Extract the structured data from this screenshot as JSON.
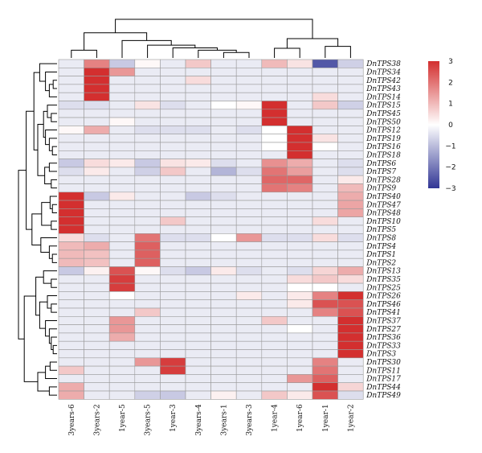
{
  "chart_data": {
    "type": "heatmap",
    "title": "",
    "xlabel": "",
    "ylabel": "",
    "columns": [
      "3years-6",
      "3years-2",
      "1year-5",
      "3years-5",
      "1year-3",
      "3years-4",
      "3years-1",
      "3years-3",
      "1year-4",
      "1year-6",
      "1year-1",
      "1year-2"
    ],
    "rows": [
      "DnTPS38",
      "DnTPS34",
      "DnTPS42",
      "DnTPS43",
      "DnTPS14",
      "DnTPS15",
      "DnTPS45",
      "DnTPS50",
      "DnTPS12",
      "DnTPS19",
      "DnTPS16",
      "DnTPS18",
      "DnTPS6",
      "DnTPS7",
      "DnTPS28",
      "DnTPS9",
      "DnTPS40",
      "DnTPS47",
      "DnTPS48",
      "DnTPS10",
      "DnTPS5",
      "DnTPS8",
      "DnTPS4",
      "DnTPS1",
      "DnTPS2",
      "DnTPS13",
      "DnTPS35",
      "DnTPS25",
      "DnTPS26",
      "DnTPS46",
      "DnTPS41",
      "DnTPS37",
      "DnTPS27",
      "DnTPS36",
      "DnTPS33",
      "DnTPS3",
      "DnTPS30",
      "DnTPS11",
      "DnTPS17",
      "DnTPS44",
      "DnTPS49"
    ],
    "values": [
      [
        -0.3,
        1.8,
        -0.8,
        0.1,
        -0.3,
        0.8,
        -0.3,
        -0.3,
        1.0,
        0.4,
        -2.5,
        -0.7
      ],
      [
        -0.3,
        3.0,
        1.5,
        -0.3,
        -0.3,
        -0.3,
        -0.3,
        -0.3,
        -0.3,
        -0.3,
        -0.3,
        -0.3
      ],
      [
        -0.3,
        3.0,
        -0.3,
        -0.3,
        -0.3,
        0.5,
        -0.3,
        -0.3,
        -0.3,
        -0.3,
        -0.3,
        -0.3
      ],
      [
        -0.3,
        3.0,
        -0.3,
        -0.3,
        -0.3,
        -0.3,
        -0.3,
        -0.3,
        -0.3,
        -0.3,
        -0.3,
        -0.3
      ],
      [
        -0.3,
        3.0,
        -0.3,
        -0.3,
        -0.3,
        -0.3,
        -0.3,
        -0.3,
        -0.3,
        -0.3,
        0.5,
        -0.3
      ],
      [
        -0.5,
        -0.5,
        -0.3,
        0.4,
        -0.5,
        -0.3,
        0.0,
        0.1,
        3.0,
        -0.3,
        0.8,
        -0.7
      ],
      [
        -0.3,
        -0.3,
        -0.3,
        -0.3,
        -0.3,
        -0.3,
        -0.3,
        -0.3,
        3.0,
        -0.3,
        -0.3,
        -0.3
      ],
      [
        -0.3,
        -0.3,
        0.1,
        -0.3,
        -0.3,
        -0.3,
        -0.3,
        -0.3,
        3.0,
        -0.3,
        -0.3,
        -0.3
      ],
      [
        0.1,
        1.2,
        -0.3,
        -0.5,
        -0.5,
        -0.5,
        -0.3,
        -0.5,
        0.0,
        3.0,
        -0.3,
        -0.3
      ],
      [
        -0.3,
        -0.3,
        -0.3,
        -0.3,
        -0.3,
        -0.3,
        -0.3,
        -0.3,
        0.0,
        3.0,
        0.4,
        -0.3
      ],
      [
        -0.3,
        -0.3,
        -0.3,
        -0.3,
        -0.3,
        -0.3,
        -0.3,
        -0.3,
        0.0,
        3.0,
        0.0,
        -0.3
      ],
      [
        -0.3,
        -0.3,
        -0.3,
        -0.3,
        -0.3,
        -0.3,
        -0.3,
        -0.3,
        -0.3,
        3.0,
        -0.3,
        -0.3
      ],
      [
        -0.8,
        0.5,
        0.3,
        -0.8,
        0.4,
        0.3,
        -0.5,
        -0.3,
        1.6,
        1.2,
        -0.3,
        -0.5
      ],
      [
        -0.5,
        0.3,
        -0.3,
        -0.7,
        0.8,
        -0.3,
        -1.1,
        -0.5,
        2.0,
        1.4,
        -0.3,
        -0.5
      ],
      [
        -0.3,
        -0.3,
        -0.3,
        -0.3,
        -0.3,
        -0.3,
        -0.3,
        -0.3,
        2.2,
        2.2,
        -0.3,
        0.3
      ],
      [
        -0.3,
        -0.3,
        -0.3,
        -0.3,
        -0.3,
        -0.3,
        -0.3,
        -0.3,
        2.0,
        1.8,
        -0.3,
        1.0
      ],
      [
        3.0,
        -0.8,
        0.3,
        -0.3,
        -0.3,
        -0.8,
        -0.5,
        -0.3,
        -0.3,
        -0.3,
        -0.3,
        1.2
      ],
      [
        3.0,
        -0.3,
        -0.3,
        -0.3,
        -0.3,
        -0.3,
        -0.3,
        -0.3,
        -0.3,
        -0.3,
        -0.3,
        1.3
      ],
      [
        3.0,
        -0.3,
        -0.3,
        -0.3,
        -0.3,
        -0.3,
        -0.3,
        -0.3,
        -0.3,
        -0.3,
        -0.3,
        1.3
      ],
      [
        3.0,
        -0.3,
        -0.3,
        -0.3,
        0.8,
        -0.3,
        -0.3,
        -0.3,
        -0.3,
        -0.3,
        0.5,
        -0.3
      ],
      [
        3.0,
        -0.3,
        -0.3,
        -0.3,
        -0.3,
        -0.3,
        -0.3,
        -0.3,
        -0.3,
        -0.3,
        -0.3,
        -0.3
      ],
      [
        0.5,
        -0.5,
        -0.3,
        2.0,
        -0.5,
        -0.5,
        0.0,
        1.5,
        -0.5,
        -0.5,
        0.5,
        -0.5
      ],
      [
        1.0,
        1.2,
        -0.3,
        2.3,
        -0.3,
        -0.3,
        -0.3,
        -0.3,
        -0.3,
        -0.3,
        -0.3,
        -0.3
      ],
      [
        1.0,
        0.9,
        -0.3,
        2.3,
        -0.3,
        -0.3,
        -0.3,
        -0.3,
        -0.3,
        -0.3,
        -0.3,
        -0.3
      ],
      [
        1.0,
        0.9,
        -0.3,
        2.3,
        -0.3,
        -0.3,
        -0.3,
        -0.3,
        -0.3,
        -0.3,
        -0.3,
        -0.3
      ],
      [
        -0.8,
        0.2,
        2.5,
        0.1,
        -0.5,
        -0.8,
        0.3,
        -0.5,
        -0.3,
        -0.5,
        0.6,
        1.2
      ],
      [
        -0.3,
        -0.3,
        2.8,
        -0.3,
        -0.3,
        -0.3,
        -0.3,
        -0.3,
        -0.3,
        0.5,
        0.8,
        0.5
      ],
      [
        -0.3,
        -0.3,
        2.8,
        -0.3,
        -0.3,
        -0.3,
        -0.3,
        -0.3,
        -0.3,
        0.0,
        0.0,
        -0.3
      ],
      [
        -0.3,
        -0.3,
        0.0,
        -0.3,
        -0.3,
        -0.3,
        -0.3,
        0.3,
        -0.3,
        0.3,
        1.8,
        3.0
      ],
      [
        -0.3,
        -0.3,
        -0.3,
        -0.3,
        -0.3,
        -0.3,
        -0.3,
        -0.3,
        -0.3,
        0.3,
        2.5,
        2.5
      ],
      [
        -0.3,
        -0.3,
        -0.3,
        0.8,
        -0.3,
        -0.3,
        -0.3,
        -0.3,
        -0.3,
        -0.3,
        1.8,
        2.5
      ],
      [
        -0.3,
        -0.3,
        1.5,
        -0.3,
        -0.3,
        -0.3,
        -0.3,
        -0.3,
        0.8,
        -0.3,
        -0.3,
        3.0
      ],
      [
        -0.3,
        -0.3,
        1.5,
        -0.3,
        -0.3,
        -0.3,
        -0.3,
        -0.3,
        -0.3,
        0.0,
        -0.3,
        3.0
      ],
      [
        -0.3,
        -0.3,
        1.2,
        -0.3,
        -0.3,
        -0.3,
        -0.3,
        -0.3,
        -0.3,
        -0.3,
        -0.3,
        3.0
      ],
      [
        -0.3,
        -0.3,
        -0.3,
        -0.3,
        -0.3,
        -0.3,
        -0.3,
        -0.3,
        -0.3,
        -0.3,
        -0.3,
        3.0
      ],
      [
        -0.3,
        -0.3,
        -0.3,
        -0.3,
        -0.3,
        -0.3,
        -0.3,
        -0.3,
        -0.3,
        -0.3,
        -0.3,
        3.0
      ],
      [
        -0.3,
        -0.3,
        -0.3,
        1.5,
        2.8,
        -0.3,
        -0.3,
        -0.3,
        -0.3,
        -0.3,
        1.8,
        -0.3
      ],
      [
        0.8,
        -0.3,
        -0.3,
        -0.3,
        2.8,
        -0.3,
        -0.3,
        -0.3,
        -0.3,
        -0.3,
        2.0,
        -0.3
      ],
      [
        -0.3,
        -0.3,
        -0.3,
        -0.3,
        -0.3,
        -0.3,
        -0.3,
        -0.3,
        -0.3,
        1.5,
        2.3,
        -0.3
      ],
      [
        1.2,
        -0.3,
        -0.3,
        -0.3,
        -0.3,
        -0.3,
        -0.3,
        -0.3,
        -0.3,
        -0.3,
        3.0,
        0.6
      ],
      [
        1.2,
        -0.3,
        -0.3,
        -0.7,
        -0.8,
        -0.3,
        0.2,
        -0.3,
        0.8,
        0.3,
        2.5,
        -0.5
      ]
    ],
    "colorbar": {
      "min": -3,
      "max": 3,
      "ticks": [
        3,
        2,
        1,
        0,
        -1,
        -2,
        -3
      ],
      "tick_labels": [
        "3",
        "2",
        "1",
        "0",
        "−1",
        "−2",
        "−3"
      ],
      "low_color": "#313695",
      "mid_color": "#ffffff",
      "high_color": "#d32f2f"
    },
    "grid": true,
    "legend_position": "top-right",
    "row_dendrogram": true,
    "column_dendrogram": true
  }
}
